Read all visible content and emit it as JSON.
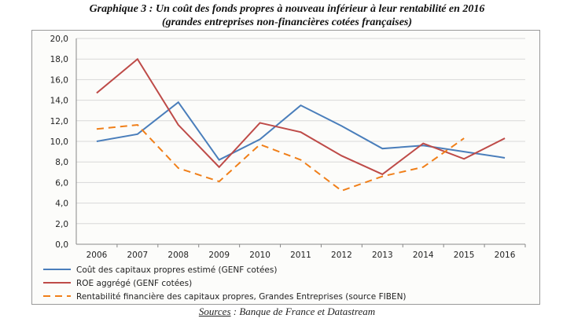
{
  "chart_data": {
    "type": "line",
    "title": "Graphique 3 : Un coût des fonds propres à nouveau inférieur à leur rentabilité en 2016",
    "subtitle": "(grandes entreprises non-financières  cotées françaises)",
    "categories": [
      "2006",
      "2007",
      "2008",
      "2009",
      "2010",
      "2011",
      "2012",
      "2013",
      "2014",
      "2015",
      "2016"
    ],
    "ylim": [
      0,
      20
    ],
    "yticks": [
      "0,0",
      "2,0",
      "4,0",
      "6,0",
      "8,0",
      "10,0",
      "12,0",
      "14,0",
      "16,0",
      "18,0",
      "20,0"
    ],
    "grid": true,
    "legend_position": "bottom",
    "series": [
      {
        "name": "Coût des capitaux propres estimé (GENF cotées)",
        "color": "#4a7ebb",
        "dash": false,
        "values": [
          10.0,
          10.7,
          13.8,
          8.2,
          10.2,
          13.5,
          11.5,
          9.3,
          9.6,
          9.0,
          8.4
        ]
      },
      {
        "name": "ROE aggrégé (GENF cotées)",
        "color": "#be4b48",
        "dash": false,
        "values": [
          14.7,
          18.0,
          11.6,
          7.5,
          11.8,
          10.9,
          8.6,
          6.8,
          9.8,
          8.3,
          10.3
        ]
      },
      {
        "name": "Rentabilité financière des capitaux propres, Grandes Entreprises (source FIBEN)",
        "color": "#f07f19",
        "dash": true,
        "values": [
          11.2,
          11.6,
          7.4,
          6.1,
          9.7,
          8.2,
          5.2,
          6.6,
          7.5,
          10.3,
          null
        ]
      }
    ]
  },
  "sources": {
    "label": "Sources",
    "text": " : Banque de France et Datastream"
  }
}
